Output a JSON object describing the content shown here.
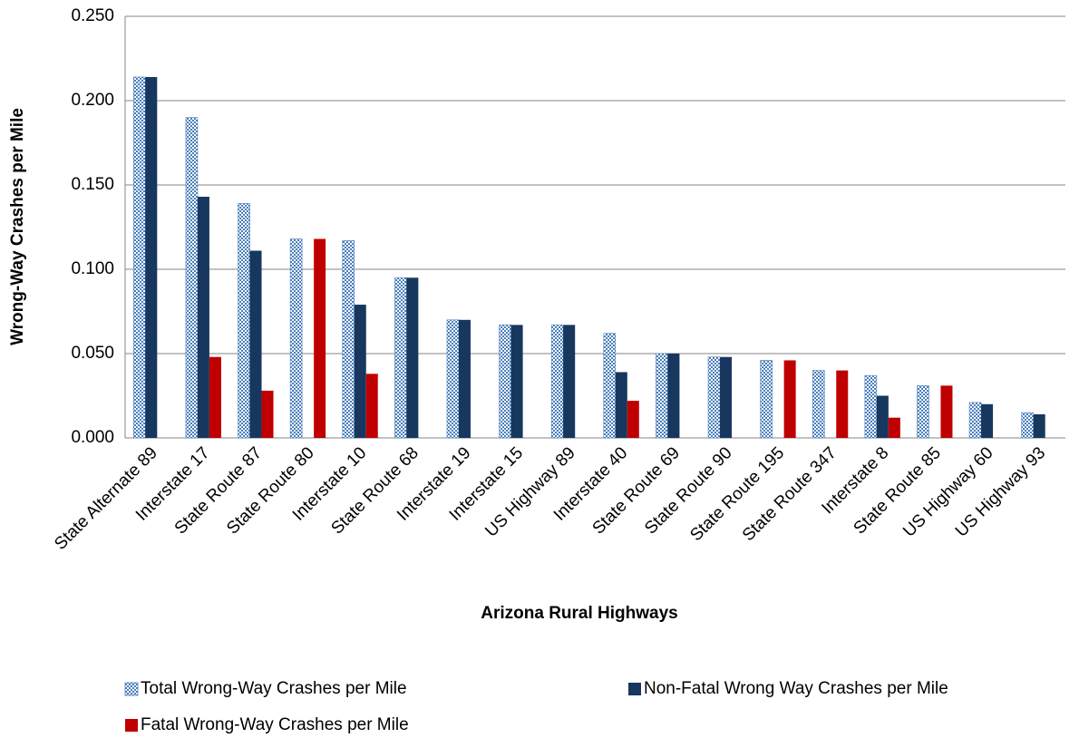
{
  "chart_data": {
    "type": "bar",
    "x_label": "Arizona Rural Highways",
    "y_label": "Wrong-Way Crashes per Mile",
    "categories": [
      "State Alternate 89",
      "Interstate 17",
      "State Route 87",
      "State Route 80",
      "Interstate 10",
      "State Route 68",
      "Interstate 19",
      "Interstate 15",
      "US Highway 89",
      "Interstate 40",
      "State Route 69",
      "State Route 90",
      "State Route 195",
      "State Route 347",
      "Interstate 8",
      "State Route 85",
      "US Highway 60",
      "US Highway 93"
    ],
    "series": [
      {
        "name": "Total Wrong-Way Crashes per Mile",
        "color": "#4a7ebb",
        "pattern": "checker",
        "values": [
          0.214,
          0.19,
          0.139,
          0.118,
          0.117,
          0.095,
          0.07,
          0.067,
          0.067,
          0.062,
          0.05,
          0.048,
          0.046,
          0.04,
          0.037,
          0.031,
          0.021,
          0.015
        ]
      },
      {
        "name": "Non-Fatal Wrong Way Crashes per Mile",
        "color": "#17375e",
        "values": [
          0.214,
          0.143,
          0.111,
          0,
          0.079,
          0.095,
          0.07,
          0.067,
          0.067,
          0.039,
          0.05,
          0.048,
          0,
          0,
          0.025,
          0,
          0.02,
          0.014
        ]
      },
      {
        "name": "Fatal Wrong-Way Crashes per Mile",
        "color": "#c00000",
        "values": [
          0,
          0.048,
          0.028,
          0.118,
          0.038,
          0,
          0,
          0,
          0,
          0.022,
          0,
          0,
          0.046,
          0.04,
          0.012,
          0.031,
          0,
          0
        ]
      }
    ],
    "ylim": [
      0,
      0.25
    ],
    "yticks": [
      {
        "value": 0,
        "label": "0.000"
      },
      {
        "value": 0.05,
        "label": "0.050"
      },
      {
        "value": 0.1,
        "label": "0.100"
      },
      {
        "value": 0.15,
        "label": "0.150"
      },
      {
        "value": 0.2,
        "label": "0.200"
      },
      {
        "value": 0.25,
        "label": "0.250"
      }
    ],
    "grid": true,
    "legend": "bottom"
  }
}
